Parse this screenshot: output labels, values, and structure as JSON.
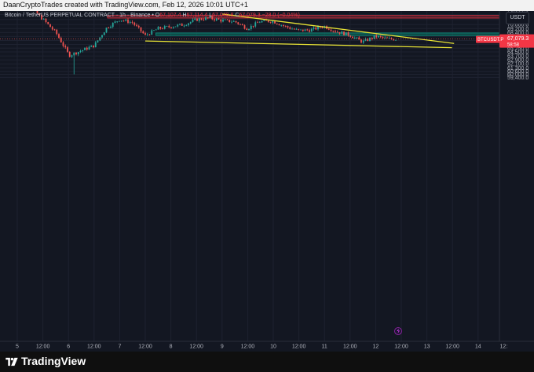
{
  "header": {
    "credit": "DaanCryptoTrades created with TradingView.com, Feb 12, 2026 10:01 UTC+1"
  },
  "legend": {
    "symbol": "Bitcoin / TetherUS PERPETUAL CONTRACT · 1h · Binance",
    "o_label": "O",
    "o": "67,107.4",
    "h_label": "H",
    "h": "67,114.4",
    "l_label": "L",
    "l": "67,040.8",
    "c_label": "C",
    "c": "67,079.3",
    "change": "−28.0 (−0.04%)"
  },
  "currency_button": "USDT",
  "price_tag": {
    "symbol": "BTCUSDT.P",
    "price": "67,079.3",
    "countdown": "58:58"
  },
  "colors": {
    "background": "#131722",
    "up": "#26a69a",
    "down": "#ef5350",
    "trendline": "#e8e335",
    "resistance_zone": "#f23645",
    "support_zone": "#089981"
  },
  "chart_data": {
    "type": "candlestick",
    "y_ticks": [
      "76,000.0",
      "75,000.0",
      "74,000.0",
      "73,000.0",
      "72,000.0",
      "71,000.0",
      "70,000.0",
      "69,200.0",
      "68,400.0",
      "67,600.0",
      "66,800.0",
      "66,000.0",
      "65,250.0",
      "64,500.0",
      "63,700.0",
      "62,900.0",
      "62,100.0",
      "61,300.0",
      "60,600.0",
      "60,000.0",
      "59,400.0"
    ],
    "x_ticks": [
      "5",
      "12:00",
      "6",
      "12:00",
      "7",
      "12:00",
      "8",
      "12:00",
      "9",
      "12:00",
      "10",
      "12:00",
      "11",
      "12:00",
      "12",
      "12:00",
      "13",
      "12:00",
      "14",
      "12:"
    ],
    "last_price": 67079.3,
    "zones": [
      {
        "name": "resistance",
        "from": 71300,
        "to": 71800
      },
      {
        "name": "support",
        "from": 67800,
        "to": 68300
      }
    ],
    "trendlines": [
      {
        "name": "upper",
        "from": [
          "Feb 9 00:00",
          72100
        ],
        "to": [
          "Feb 13 13:00",
          66200
        ]
      },
      {
        "name": "lower",
        "from": [
          "Feb 7 12:00",
          66700
        ],
        "to": [
          "Feb 13 12:00",
          65350
        ]
      }
    ],
    "ohlc_anchors": [
      {
        "t": "Feb 4 18:00",
        "c": 73500
      },
      {
        "t": "Feb 5 06:00",
        "c": 73600
      },
      {
        "t": "Feb 5 12:00",
        "c": 71000
      },
      {
        "t": "Feb 5 18:00",
        "c": 68300
      },
      {
        "t": "Feb 6 00:00",
        "c": 63800
      },
      {
        "t": "Feb 6 02:00",
        "low": 60000
      },
      {
        "t": "Feb 6 06:00",
        "c": 64800
      },
      {
        "t": "Feb 6 12:00",
        "c": 65800
      },
      {
        "t": "Feb 6 18:00",
        "c": 69400
      },
      {
        "t": "Feb 7 00:00",
        "c": 71000
      },
      {
        "t": "Feb 7 06:00",
        "c": 70400
      },
      {
        "t": "Feb 7 12:00",
        "c": 67800
      },
      {
        "t": "Feb 7 18:00",
        "c": 69200
      },
      {
        "t": "Feb 8 00:00",
        "c": 69600
      },
      {
        "t": "Feb 8 06:00",
        "c": 70000
      },
      {
        "t": "Feb 8 12:00",
        "c": 71000
      },
      {
        "t": "Feb 8 18:00",
        "c": 71300
      },
      {
        "t": "Feb 9 00:00",
        "c": 70800
      },
      {
        "t": "Feb 9 06:00",
        "c": 70600
      },
      {
        "t": "Feb 9 12:00",
        "c": 69200
      },
      {
        "t": "Feb 9 18:00",
        "c": 70600
      },
      {
        "t": "Feb 10 00:00",
        "c": 70700
      },
      {
        "t": "Feb 10 06:00",
        "c": 69600
      },
      {
        "t": "Feb 10 12:00",
        "c": 68800
      },
      {
        "t": "Feb 10 18:00",
        "c": 68900
      },
      {
        "t": "Feb 11 00:00",
        "c": 69700
      },
      {
        "t": "Feb 11 06:00",
        "c": 68600
      },
      {
        "t": "Feb 11 12:00",
        "c": 67900
      },
      {
        "t": "Feb 11 18:00",
        "c": 66500
      },
      {
        "t": "Feb 12 00:00",
        "c": 67600
      },
      {
        "t": "Feb 12 06:00",
        "c": 67100
      },
      {
        "t": "Feb 12 10:00",
        "c": 67079.3
      }
    ]
  },
  "brand": "TradingView"
}
